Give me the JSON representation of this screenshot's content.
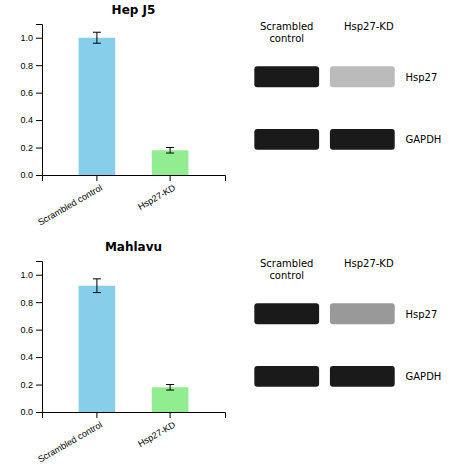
{
  "chart_data": [
    {
      "type": "bar",
      "title": "Hep J5",
      "categories": [
        "Scrambled control",
        "Hsp27-KD"
      ],
      "values": [
        1.0,
        0.18
      ],
      "error_bars": [
        0.04,
        0.02
      ],
      "colors": [
        "#87CEEB",
        "#90EE90"
      ],
      "ylim": [
        0,
        1.1
      ],
      "yticks": [
        {
          "value": 0,
          "label": "0.0"
        },
        0.2,
        0.4,
        0.6,
        0.8,
        {
          "value": 1,
          "label": "1.0"
        }
      ],
      "annotations": [
        "Scrambled\ncontrol",
        "Hsp27-KD",
        "Hsp27",
        "GAPDH"
      ]
    },
    {
      "type": "bar",
      "title": "Mahlavu",
      "categories": [
        "Scrambled control",
        "Hsp27-KD"
      ],
      "values": [
        0.92,
        0.18
      ],
      "error_bars": [
        0.05,
        0.02
      ],
      "colors": [
        "#87CEEB",
        "#90EE90"
      ],
      "ylim": [
        0,
        1.1
      ],
      "yticks": [
        {
          "value": 0,
          "label": "0.0"
        },
        0.2,
        0.4,
        0.6,
        0.8,
        {
          "value": 1,
          "label": "1.0"
        }
      ],
      "annotations": [
        "Scrambled\ncontrol",
        "Hsp27-KD",
        "Hsp27",
        "GAPDH"
      ]
    }
  ]
}
